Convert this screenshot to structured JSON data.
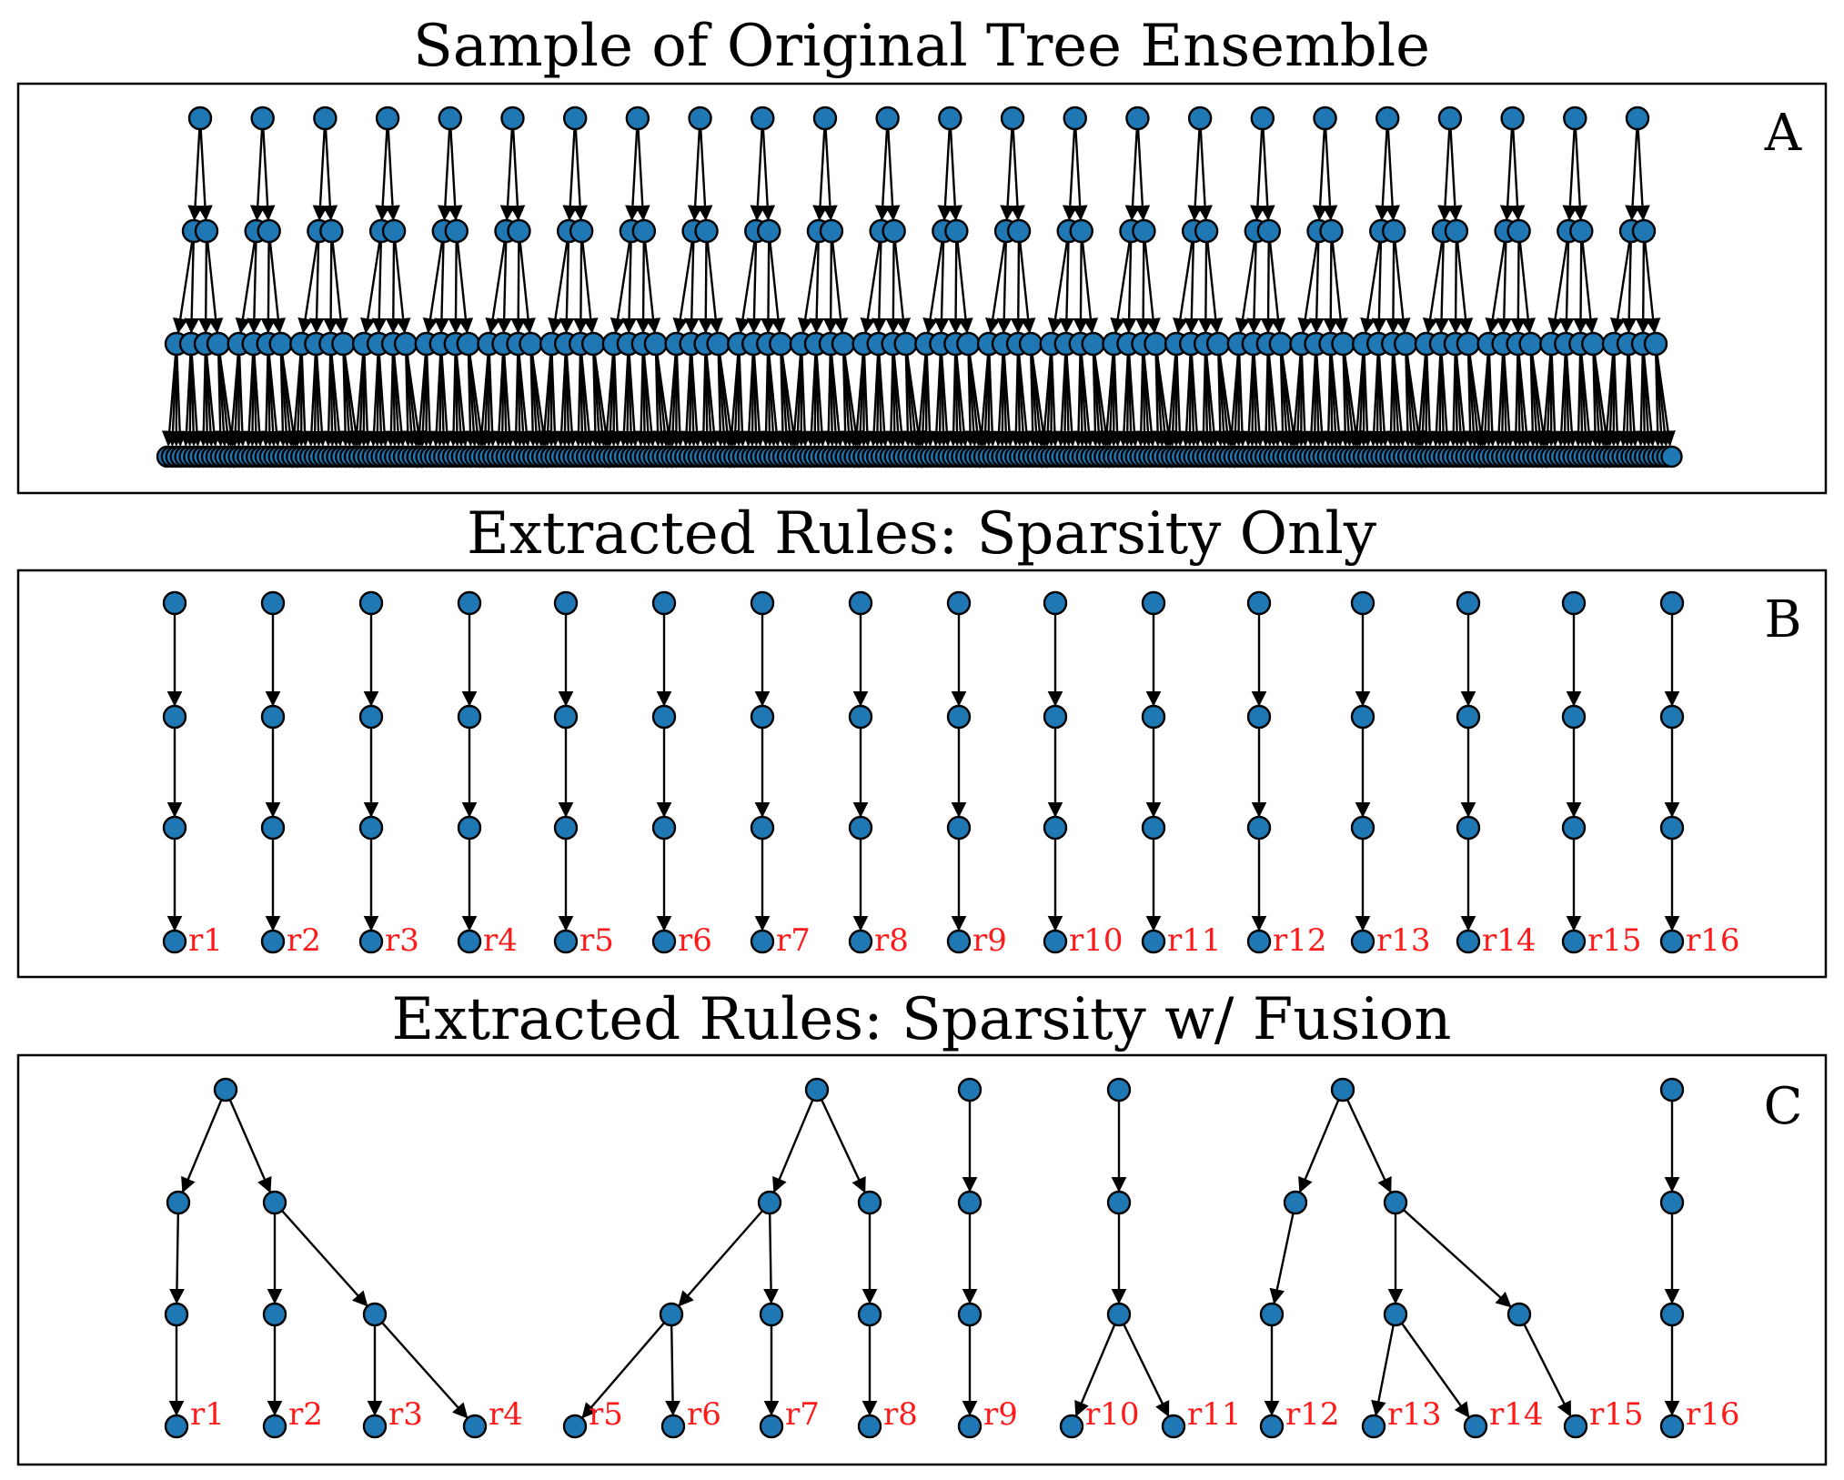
{
  "panels": [
    {
      "id": "A",
      "title": "Sample of Original Tree Ensemble",
      "letter": "A"
    },
    {
      "id": "B",
      "title": "Extracted Rules: Sparsity Only",
      "letter": "B"
    },
    {
      "id": "C",
      "title": "Extracted Rules: Sparsity w/ Fusion",
      "letter": "C"
    }
  ],
  "rule_labels": [
    "r1",
    "r2",
    "r3",
    "r4",
    "r5",
    "r6",
    "r7",
    "r8",
    "r9",
    "r10",
    "r11",
    "r12",
    "r13",
    "r14",
    "r15",
    "r16"
  ],
  "ensemble": {
    "tree_count": 24,
    "depth": 3,
    "branching": 2
  },
  "colors": {
    "node_fill": "#1f77b4",
    "rule_label": "#ff1a1a",
    "edge": "#000000"
  }
}
